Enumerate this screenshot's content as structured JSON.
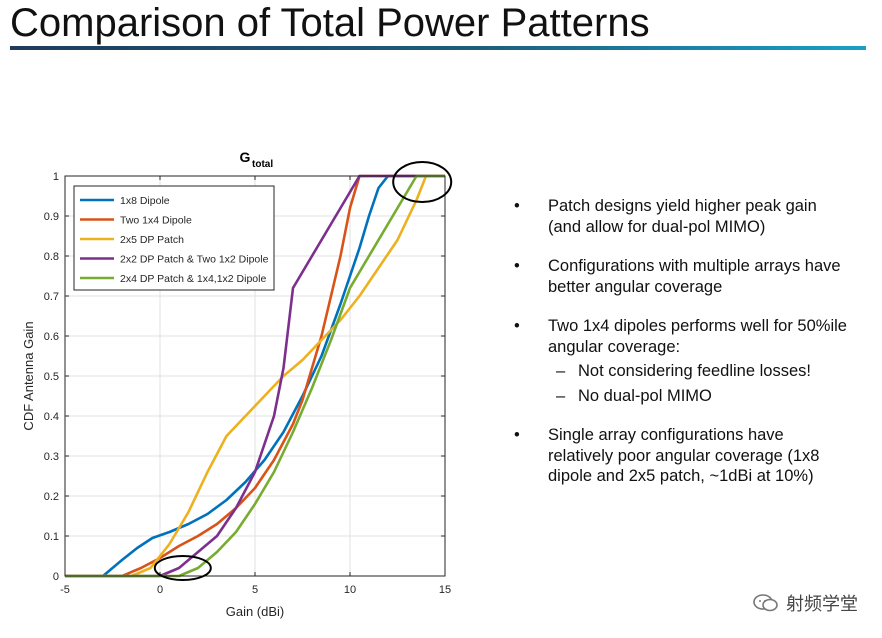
{
  "slide": {
    "title": "Comparison of Total Power Patterns"
  },
  "chart_data": {
    "type": "line",
    "title": "G",
    "title_subscript": "total",
    "xlabel": "Gain (dBi)",
    "ylabel": "CDF Antenna Gain",
    "xlim": [
      -5,
      15
    ],
    "ylim": [
      0,
      1
    ],
    "xticks": [
      "-5",
      "0",
      "5",
      "10",
      "15"
    ],
    "yticks": [
      "0",
      "0.1",
      "0.2",
      "0.3",
      "0.4",
      "0.5",
      "0.6",
      "0.7",
      "0.8",
      "0.9",
      "1"
    ],
    "grid": true,
    "legend_position": "top-left",
    "series": [
      {
        "name": "1x8 Dipole",
        "color": "#0072bd",
        "x": [
          -5,
          -3.0,
          -2.0,
          -1.2,
          -0.4,
          0.5,
          1.5,
          2.5,
          3.5,
          4.5,
          5.5,
          6.5,
          7.5,
          8.5,
          9.5,
          10.5,
          11.0,
          11.5,
          12.0,
          15
        ],
        "y": [
          0,
          0.0,
          0.04,
          0.07,
          0.095,
          0.11,
          0.13,
          0.155,
          0.19,
          0.235,
          0.29,
          0.36,
          0.45,
          0.55,
          0.68,
          0.82,
          0.9,
          0.97,
          1.0,
          1.0
        ]
      },
      {
        "name": "Two 1x4 Dipole",
        "color": "#d95319",
        "x": [
          -5,
          -2.0,
          -1.0,
          0.0,
          1.0,
          2.0,
          3.0,
          4.0,
          5.0,
          6.0,
          7.0,
          7.5,
          8.0,
          8.5,
          9.0,
          9.5,
          10.0,
          10.5,
          11.0,
          15
        ],
        "y": [
          0,
          0.0,
          0.02,
          0.045,
          0.075,
          0.1,
          0.13,
          0.17,
          0.22,
          0.29,
          0.38,
          0.44,
          0.52,
          0.6,
          0.7,
          0.8,
          0.92,
          1.0,
          1.0,
          1.0
        ]
      },
      {
        "name": "2x5 DP Patch",
        "color": "#edb120",
        "x": [
          -5,
          -1.5,
          -0.5,
          0.5,
          1.5,
          2.5,
          3.5,
          4.5,
          5.5,
          6.5,
          7.5,
          8.5,
          9.5,
          10.5,
          11.5,
          12.5,
          13.5,
          14.0,
          15
        ],
        "y": [
          0,
          0.0,
          0.02,
          0.08,
          0.16,
          0.26,
          0.35,
          0.4,
          0.45,
          0.5,
          0.54,
          0.59,
          0.64,
          0.7,
          0.77,
          0.84,
          0.94,
          1.0,
          1.0
        ]
      },
      {
        "name": "2x2 DP Patch & Two 1x2 Dipole",
        "color": "#7e2f8e",
        "x": [
          -5,
          0.0,
          1.0,
          2.0,
          3.0,
          4.0,
          5.0,
          6.0,
          6.5,
          7.0,
          7.5,
          8.0,
          8.5,
          9.0,
          9.5,
          10.0,
          10.5,
          11.0,
          15
        ],
        "y": [
          0,
          0.0,
          0.02,
          0.06,
          0.1,
          0.17,
          0.26,
          0.4,
          0.52,
          0.72,
          0.76,
          0.8,
          0.84,
          0.88,
          0.92,
          0.96,
          1.0,
          1.0,
          1.0
        ]
      },
      {
        "name": "2x4 DP Patch & 1x4,1x2 Dipole",
        "color": "#77ac30",
        "x": [
          -5,
          1.0,
          2.0,
          3.0,
          4.0,
          5.0,
          6.0,
          7.0,
          8.0,
          9.0,
          10.0,
          11.0,
          12.0,
          12.5,
          13.0,
          13.5,
          15
        ],
        "y": [
          0,
          0.0,
          0.02,
          0.06,
          0.11,
          0.18,
          0.26,
          0.36,
          0.47,
          0.59,
          0.72,
          0.8,
          0.88,
          0.92,
          0.96,
          1.0,
          1.0
        ]
      }
    ],
    "annotations": [
      {
        "shape": "ellipse",
        "cx": 1.2,
        "cy": 0.02
      },
      {
        "shape": "ellipse",
        "cx": 13.8,
        "cy": 0.985
      }
    ]
  },
  "bullets": [
    {
      "text": "Patch designs yield higher peak gain (and allow for dual-pol MIMO)",
      "subs": []
    },
    {
      "text": "Configurations with multiple arrays have better angular coverage",
      "subs": []
    },
    {
      "text": "Two 1x4 dipoles performs well for 50%ile angular coverage:",
      "subs": [
        "Not considering feedline losses!",
        "No dual-pol MIMO"
      ]
    },
    {
      "text": "Single array configurations have relatively poor angular coverage (1x8 dipole and 2x5 patch, ~1dBi at 10%)",
      "subs": []
    }
  ],
  "bullet_symbol": "•",
  "sub_symbol": "–",
  "watermark": {
    "text": "射频学堂",
    "icon": "wechat-icon"
  }
}
